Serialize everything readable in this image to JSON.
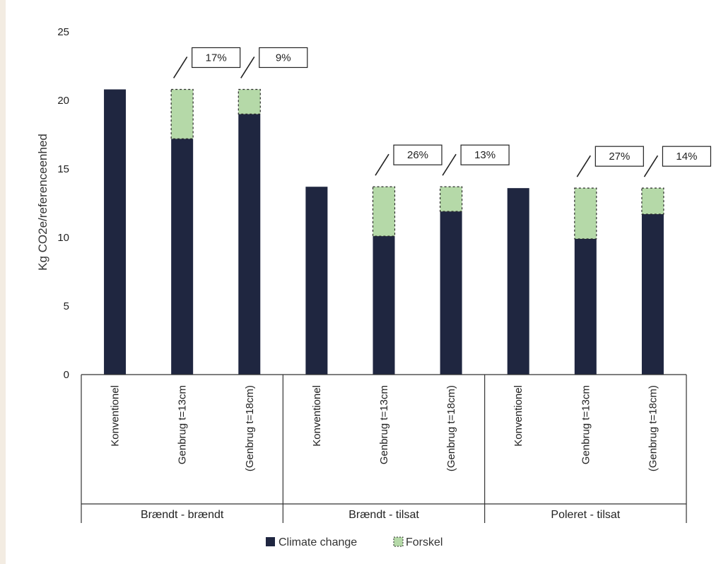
{
  "chart_data": {
    "type": "bar",
    "stacked": true,
    "ylabel": "Kg CO2e/referenceenhed",
    "ylim": [
      0,
      25
    ],
    "yticks": [
      0,
      5,
      10,
      15,
      20,
      25
    ],
    "categories": [
      "Konventionel",
      "Genbrug t=13cm",
      "(Genbrug t=18cm)",
      "Konventionel",
      "Genbrug t=13cm",
      "(Genbrug t=18cm)",
      "Konventionel",
      "Genbrug t=13cm",
      "(Genbrug t=18cm)"
    ],
    "groups": [
      "Brændt - brændt",
      "Brændt - tilsat",
      "Poleret - tilsat"
    ],
    "series": [
      {
        "name": "Climate change",
        "color": "#1f2640",
        "values": [
          20.8,
          17.2,
          19.0,
          13.7,
          10.1,
          11.9,
          13.6,
          9.9,
          11.7
        ]
      },
      {
        "name": "Forskel",
        "color": "#b5d9a8",
        "pattern": "dotted",
        "values": [
          0,
          3.6,
          1.8,
          0,
          3.6,
          1.8,
          0,
          3.7,
          1.9
        ]
      }
    ],
    "annotations": [
      "",
      "17%",
      "9%",
      "",
      "26%",
      "13%",
      "",
      "27%",
      "14%"
    ],
    "legend": "bottom"
  }
}
